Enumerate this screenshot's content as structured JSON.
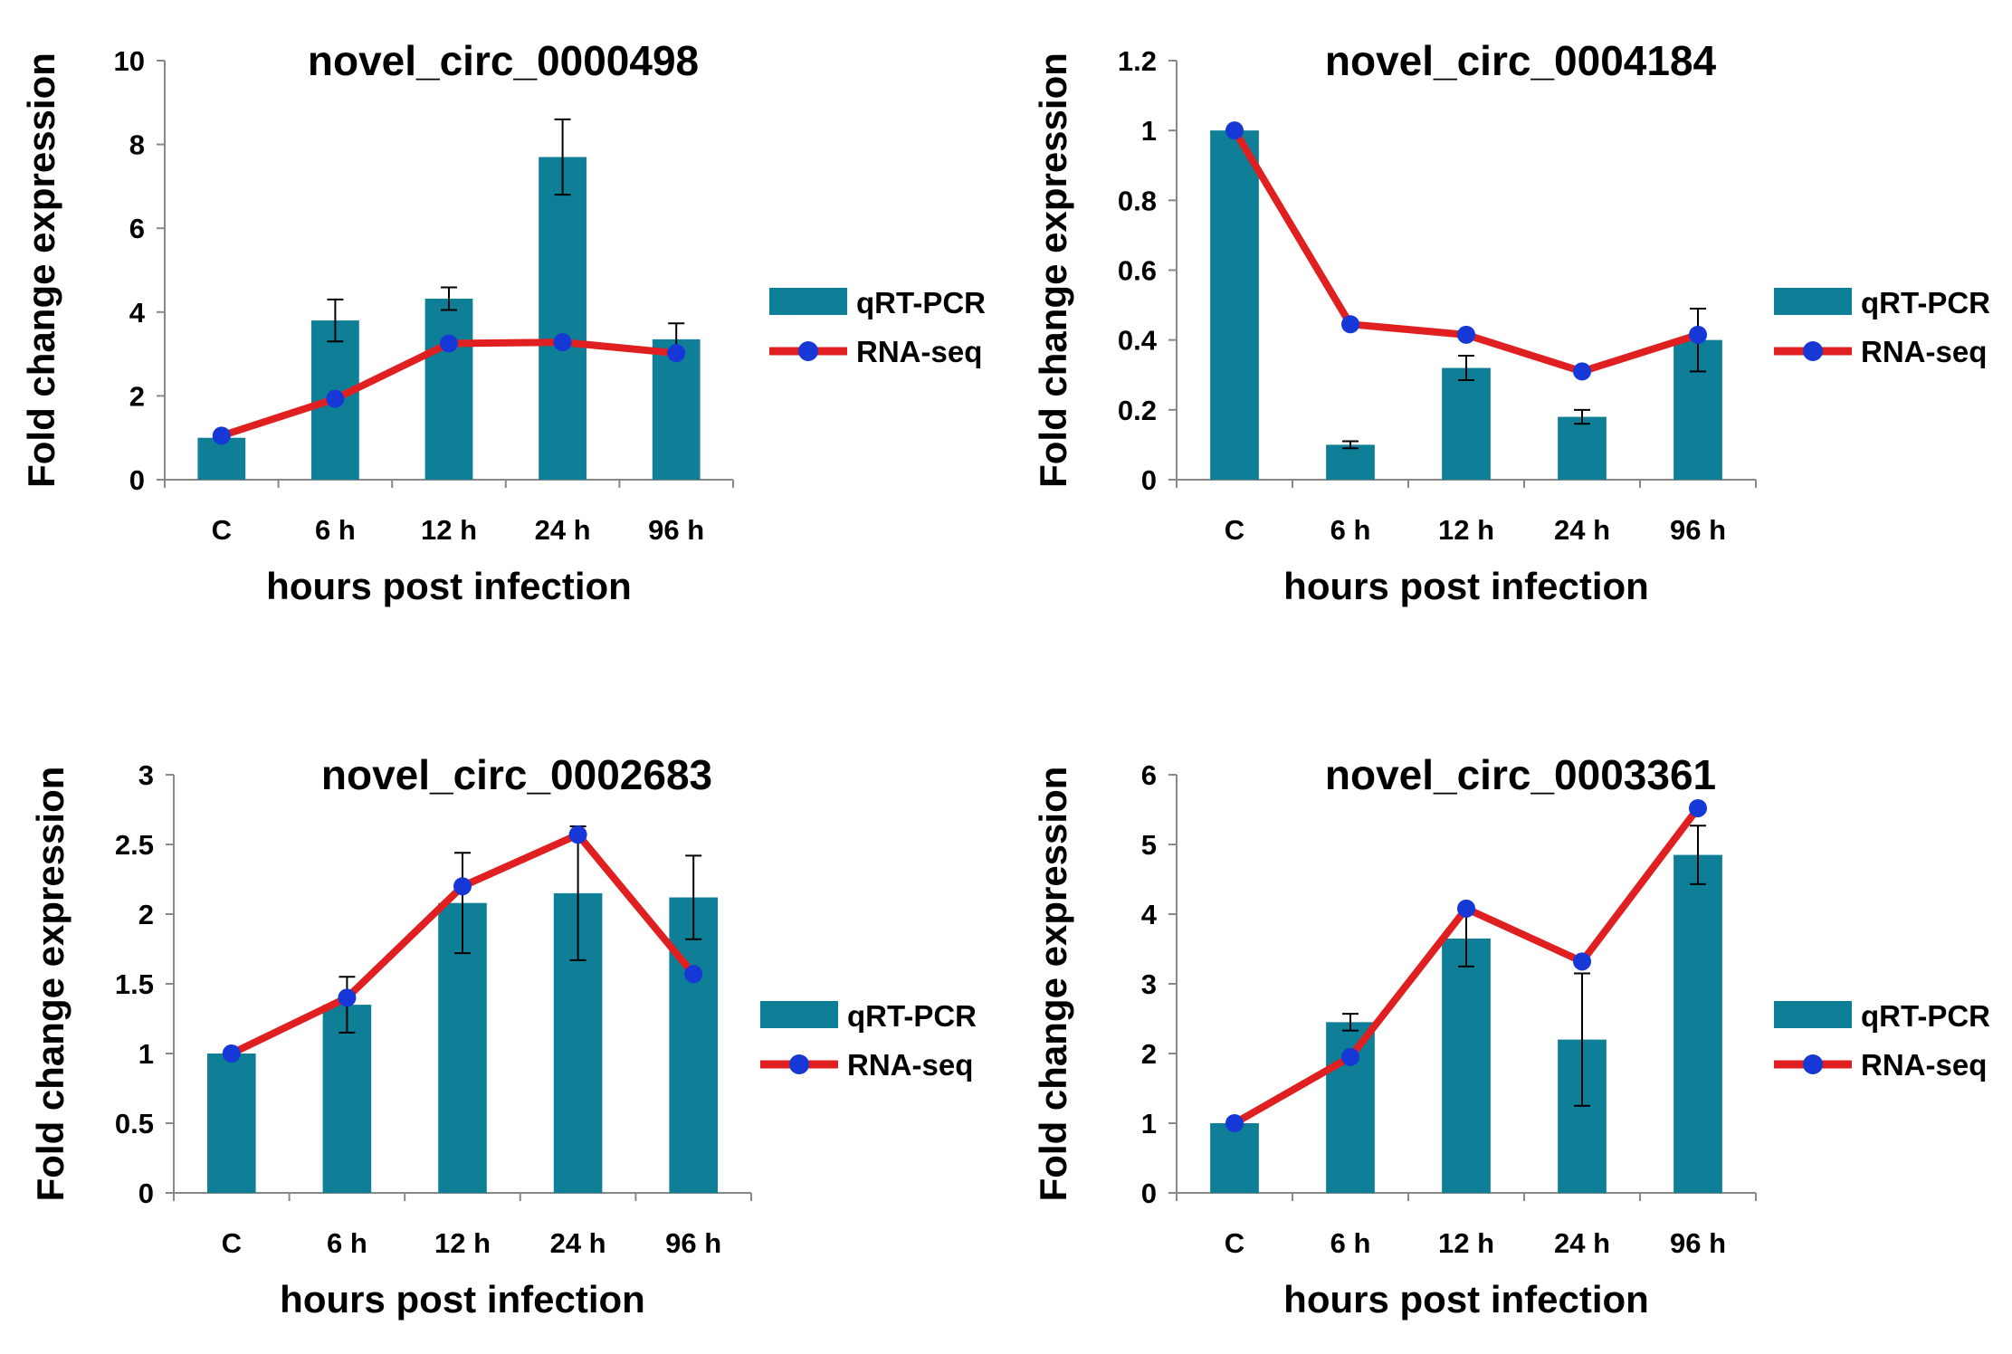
{
  "chart_data": [
    {
      "type": "bar",
      "title": "novel_circ_0000498",
      "xlabel": "hours post infection",
      "ylabel": "Fold change expression",
      "categories": [
        "C",
        "6 h",
        "12 h",
        "24 h",
        "96 h"
      ],
      "ylim": [
        0,
        10
      ],
      "yticks": [
        0,
        2,
        4,
        6,
        8,
        10
      ],
      "ytick_labels": [
        "0",
        "2",
        "4",
        "6",
        "8",
        "10"
      ],
      "legend": "right",
      "series": [
        {
          "name": "qRT-PCR",
          "kind": "bar",
          "color": "#0e7f97",
          "values": [
            1.0,
            3.8,
            4.32,
            7.7,
            3.35
          ],
          "errors": [
            0,
            0.5,
            0.27,
            0.9,
            0.38
          ]
        },
        {
          "name": "RNA-seq",
          "kind": "line",
          "color": "#e02020",
          "marker_color": "#1538d6",
          "values": [
            1.05,
            1.93,
            3.25,
            3.28,
            3.02
          ]
        }
      ]
    },
    {
      "type": "bar",
      "title": "novel_circ_0004184",
      "xlabel": "hours post infection",
      "ylabel": "Fold change expression",
      "categories": [
        "C",
        "6 h",
        "12 h",
        "24 h",
        "96 h"
      ],
      "ylim": [
        0,
        1.2
      ],
      "yticks": [
        0,
        0.2,
        0.4,
        0.6,
        0.8,
        1,
        1.2
      ],
      "ytick_labels": [
        "0",
        "0.2",
        "0.4",
        "0.6",
        "0.8",
        "1",
        "1.2"
      ],
      "legend": "right",
      "series": [
        {
          "name": "qRT-PCR",
          "kind": "bar",
          "color": "#0e7f97",
          "values": [
            1.0,
            0.1,
            0.32,
            0.18,
            0.4
          ],
          "errors": [
            0,
            0.01,
            0.035,
            0.02,
            0.09
          ]
        },
        {
          "name": "RNA-seq",
          "kind": "line",
          "color": "#e02020",
          "marker_color": "#1538d6",
          "values": [
            1.0,
            0.445,
            0.415,
            0.31,
            0.415
          ]
        }
      ]
    },
    {
      "type": "bar",
      "title": "novel_circ_0002683",
      "xlabel": "hours post infection",
      "ylabel": "Fold change expression",
      "categories": [
        "C",
        "6 h",
        "12 h",
        "24 h",
        "96 h"
      ],
      "ylim": [
        0,
        3
      ],
      "yticks": [
        0,
        0.5,
        1,
        1.5,
        2,
        2.5,
        3
      ],
      "ytick_labels": [
        "0",
        "0.5",
        "1",
        "1.5",
        "2",
        "2.5",
        "3"
      ],
      "legend": "right",
      "series": [
        {
          "name": "qRT-PCR",
          "kind": "bar",
          "color": "#0e7f97",
          "values": [
            1.0,
            1.35,
            2.08,
            2.15,
            2.12
          ],
          "errors": [
            0,
            0.2,
            0.36,
            0.48,
            0.3
          ]
        },
        {
          "name": "RNA-seq",
          "kind": "line",
          "color": "#e02020",
          "marker_color": "#1538d6",
          "values": [
            1.0,
            1.4,
            2.2,
            2.57,
            1.57
          ]
        }
      ]
    },
    {
      "type": "bar",
      "title": "novel_circ_0003361",
      "xlabel": "hours post infection",
      "ylabel": "Fold change expression",
      "categories": [
        "C",
        "6 h",
        "12 h",
        "24 h",
        "96 h"
      ],
      "ylim": [
        0,
        6
      ],
      "yticks": [
        0,
        1,
        2,
        3,
        4,
        5,
        6
      ],
      "ytick_labels": [
        "0",
        "1",
        "2",
        "3",
        "4",
        "5",
        "6"
      ],
      "legend": "right",
      "series": [
        {
          "name": "qRT-PCR",
          "kind": "bar",
          "color": "#0e7f97",
          "values": [
            1.0,
            2.45,
            3.65,
            2.2,
            4.85
          ],
          "errors": [
            0,
            0.12,
            0.4,
            0.95,
            0.42
          ]
        },
        {
          "name": "RNA-seq",
          "kind": "line",
          "color": "#e02020",
          "marker_color": "#1538d6",
          "values": [
            1.0,
            1.95,
            4.08,
            3.32,
            5.52
          ]
        }
      ]
    }
  ]
}
